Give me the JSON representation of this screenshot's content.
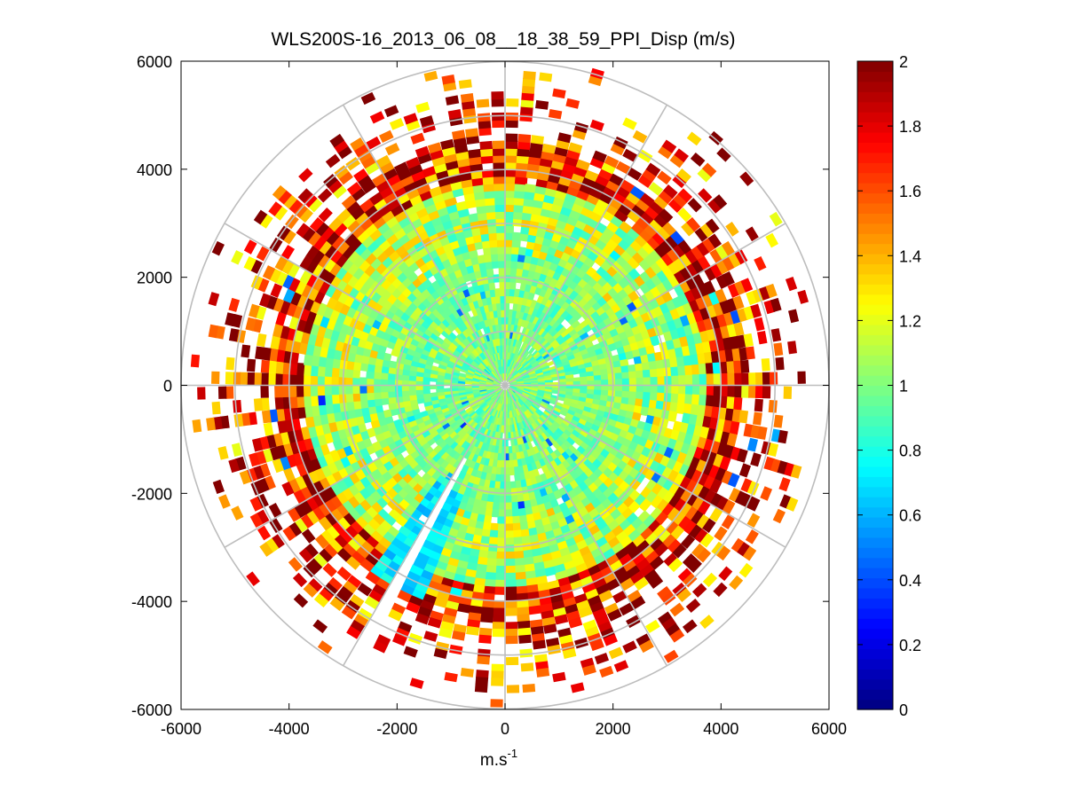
{
  "chart_data": {
    "type": "heatmap",
    "subtype": "polar PPI scan",
    "title": "WLS200S-16_2013_06_08__18_38_59_PPI_Disp (m/s)",
    "xlabel": "m.s",
    "xlabel_exponent": "-1",
    "ylabel": "",
    "xlim": [
      -6000,
      6000
    ],
    "ylim": [
      -6000,
      6000
    ],
    "xticks": [
      -6000,
      -4000,
      -2000,
      0,
      2000,
      4000,
      6000
    ],
    "yticks": [
      -6000,
      -4000,
      -2000,
      0,
      2000,
      4000,
      6000
    ],
    "xtick_labels": [
      "-6000",
      "-4000",
      "-2000",
      "0",
      "2000",
      "4000",
      "6000"
    ],
    "ytick_labels": [
      "6000",
      "4000",
      "2000",
      "0",
      "-2000",
      "-4000",
      "-6000"
    ],
    "polar_grid": {
      "ring_radii": [
        1000,
        2000,
        3000,
        4000,
        5000,
        6000
      ],
      "spoke_angles_deg": [
        0,
        30,
        60,
        90,
        120,
        150,
        180,
        210,
        240,
        270,
        300,
        330
      ]
    },
    "colorbar": {
      "colormap": "jet",
      "range": [
        0,
        2
      ],
      "ticks": [
        0,
        0.2,
        0.4,
        0.6,
        0.8,
        1,
        1.2,
        1.4,
        1.6,
        1.8,
        2
      ],
      "tick_labels": [
        "0",
        "0.2",
        "0.4",
        "0.6",
        "0.8",
        "1",
        "1.2",
        "1.4",
        "1.6",
        "1.8",
        "2"
      ],
      "levels": 64
    },
    "field_description": {
      "dense_radius_m": 4200,
      "max_sparse_radius_m": 6000,
      "typical_value_inner": 1.0,
      "typical_value_outer": 1.9,
      "gaps_azimuth_deg": [
        0,
        208
      ],
      "low_value_sector_deg": [
        200,
        215
      ],
      "low_value": 0.7
    }
  }
}
